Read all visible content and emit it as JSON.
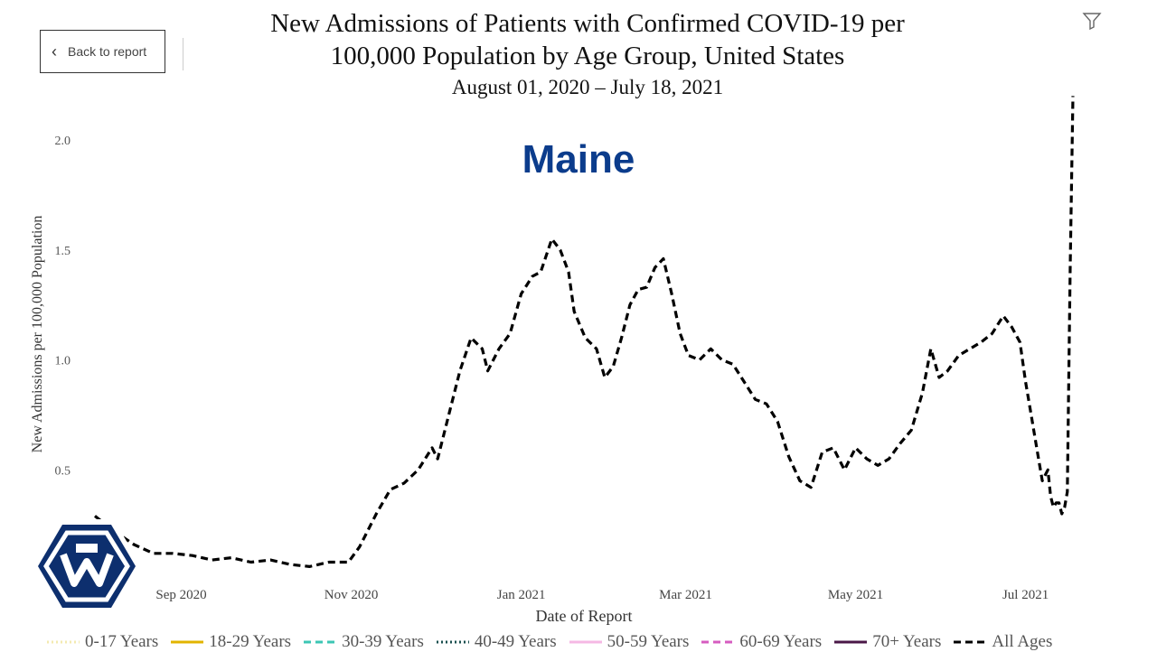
{
  "back_button": {
    "label": "Back to report"
  },
  "icons": {
    "back": "chevron-left-icon",
    "filter": "filter-icon",
    "logo": "hexagon-logo-icon"
  },
  "header": {
    "title_line1": "New Admissions of Patients with Confirmed COVID-19 per",
    "title_line2": "100,000 Population by Age Group, United States",
    "subtitle": "August 01, 2020 – July 18, 2021",
    "state": "Maine"
  },
  "colors": {
    "state": "#0b3c8c",
    "all_ages": "#000000"
  },
  "legend": [
    {
      "label": "0-17 Years",
      "color": "#f3eab0",
      "dash": "2,3"
    },
    {
      "label": "18-29 Years",
      "color": "#e2b400",
      "dash": ""
    },
    {
      "label": "30-39 Years",
      "color": "#3cc6b4",
      "dash": "8,5"
    },
    {
      "label": "40-49 Years",
      "color": "#1a4f4f",
      "dash": "2,3"
    },
    {
      "label": "50-59 Years",
      "color": "#f5b8e4",
      "dash": ""
    },
    {
      "label": "60-69 Years",
      "color": "#d65cc0",
      "dash": "8,5"
    },
    {
      "label": "70+ Years",
      "color": "#4a1747",
      "dash": ""
    },
    {
      "label": "All Ages",
      "color": "#000000",
      "dash": "8,5"
    }
  ],
  "chart_data": {
    "type": "line",
    "xlabel": "Date of Report",
    "ylabel": "New Admissions per 100,000 Population",
    "x_range": [
      "2020-08-01",
      "2021-07-18"
    ],
    "ylim": [
      0,
      2.2
    ],
    "y_ticks": [
      "0.5",
      "1.0",
      "1.5",
      "2.0"
    ],
    "x_ticks": [
      {
        "date": "2020-09-01",
        "label": "Sep 2020"
      },
      {
        "date": "2020-11-01",
        "label": "Nov 2020"
      },
      {
        "date": "2021-01-01",
        "label": "Jan 2021"
      },
      {
        "date": "2021-03-01",
        "label": "Mar 2021"
      },
      {
        "date": "2021-05-01",
        "label": "May 2021"
      },
      {
        "date": "2021-07-01",
        "label": "Jul 2021"
      }
    ],
    "series": [
      {
        "name": "All Ages",
        "points": [
          [
            "2020-08-01",
            0.29
          ],
          [
            "2020-08-08",
            0.22
          ],
          [
            "2020-08-15",
            0.16
          ],
          [
            "2020-08-22",
            0.12
          ],
          [
            "2020-08-29",
            0.12
          ],
          [
            "2020-09-05",
            0.11
          ],
          [
            "2020-09-12",
            0.09
          ],
          [
            "2020-09-19",
            0.1
          ],
          [
            "2020-09-26",
            0.08
          ],
          [
            "2020-10-03",
            0.09
          ],
          [
            "2020-10-10",
            0.07
          ],
          [
            "2020-10-17",
            0.06
          ],
          [
            "2020-10-24",
            0.08
          ],
          [
            "2020-10-31",
            0.08
          ],
          [
            "2020-11-04",
            0.15
          ],
          [
            "2020-11-10",
            0.3
          ],
          [
            "2020-11-15",
            0.41
          ],
          [
            "2020-11-20",
            0.44
          ],
          [
            "2020-11-25",
            0.5
          ],
          [
            "2020-11-30",
            0.6
          ],
          [
            "2020-12-02",
            0.55
          ],
          [
            "2020-12-05",
            0.7
          ],
          [
            "2020-12-10",
            0.95
          ],
          [
            "2020-12-14",
            1.1
          ],
          [
            "2020-12-18",
            1.05
          ],
          [
            "2020-12-20",
            0.95
          ],
          [
            "2020-12-24",
            1.05
          ],
          [
            "2020-12-28",
            1.12
          ],
          [
            "2021-01-01",
            1.3
          ],
          [
            "2021-01-05",
            1.38
          ],
          [
            "2021-01-08",
            1.4
          ],
          [
            "2021-01-12",
            1.55
          ],
          [
            "2021-01-15",
            1.5
          ],
          [
            "2021-01-18",
            1.4
          ],
          [
            "2021-01-20",
            1.22
          ],
          [
            "2021-01-24",
            1.1
          ],
          [
            "2021-01-28",
            1.05
          ],
          [
            "2021-01-31",
            0.92
          ],
          [
            "2021-02-03",
            0.97
          ],
          [
            "2021-02-06",
            1.1
          ],
          [
            "2021-02-09",
            1.25
          ],
          [
            "2021-02-12",
            1.32
          ],
          [
            "2021-02-15",
            1.33
          ],
          [
            "2021-02-18",
            1.42
          ],
          [
            "2021-02-21",
            1.46
          ],
          [
            "2021-02-24",
            1.3
          ],
          [
            "2021-02-27",
            1.12
          ],
          [
            "2021-03-02",
            1.02
          ],
          [
            "2021-03-06",
            1.0
          ],
          [
            "2021-03-10",
            1.05
          ],
          [
            "2021-03-14",
            1.0
          ],
          [
            "2021-03-18",
            0.98
          ],
          [
            "2021-03-22",
            0.9
          ],
          [
            "2021-03-26",
            0.82
          ],
          [
            "2021-03-30",
            0.8
          ],
          [
            "2021-04-03",
            0.72
          ],
          [
            "2021-04-07",
            0.56
          ],
          [
            "2021-04-11",
            0.45
          ],
          [
            "2021-04-15",
            0.42
          ],
          [
            "2021-04-19",
            0.58
          ],
          [
            "2021-04-23",
            0.6
          ],
          [
            "2021-04-27",
            0.5
          ],
          [
            "2021-05-01",
            0.6
          ],
          [
            "2021-05-05",
            0.55
          ],
          [
            "2021-05-09",
            0.52
          ],
          [
            "2021-05-13",
            0.55
          ],
          [
            "2021-05-17",
            0.62
          ],
          [
            "2021-05-21",
            0.68
          ],
          [
            "2021-05-25",
            0.85
          ],
          [
            "2021-05-28",
            1.05
          ],
          [
            "2021-05-31",
            0.92
          ],
          [
            "2021-06-03",
            0.95
          ],
          [
            "2021-06-07",
            1.02
          ],
          [
            "2021-06-11",
            1.05
          ],
          [
            "2021-06-15",
            1.08
          ],
          [
            "2021-06-19",
            1.12
          ],
          [
            "2021-06-23",
            1.2
          ],
          [
            "2021-06-26",
            1.15
          ],
          [
            "2021-06-29",
            1.08
          ],
          [
            "2021-07-01",
            0.9
          ],
          [
            "2021-07-03",
            0.75
          ],
          [
            "2021-07-05",
            0.6
          ],
          [
            "2021-07-07",
            0.45
          ],
          [
            "2021-07-09",
            0.5
          ],
          [
            "2021-07-10",
            0.38
          ],
          [
            "2021-07-11",
            0.33
          ],
          [
            "2021-07-12",
            0.35
          ],
          [
            "2021-07-13",
            0.35
          ],
          [
            "2021-07-14",
            0.3
          ],
          [
            "2021-07-15",
            0.33
          ],
          [
            "2021-07-16",
            0.4
          ],
          [
            "2021-07-17",
            1.4
          ],
          [
            "2021-07-18",
            2.2
          ]
        ]
      }
    ]
  }
}
